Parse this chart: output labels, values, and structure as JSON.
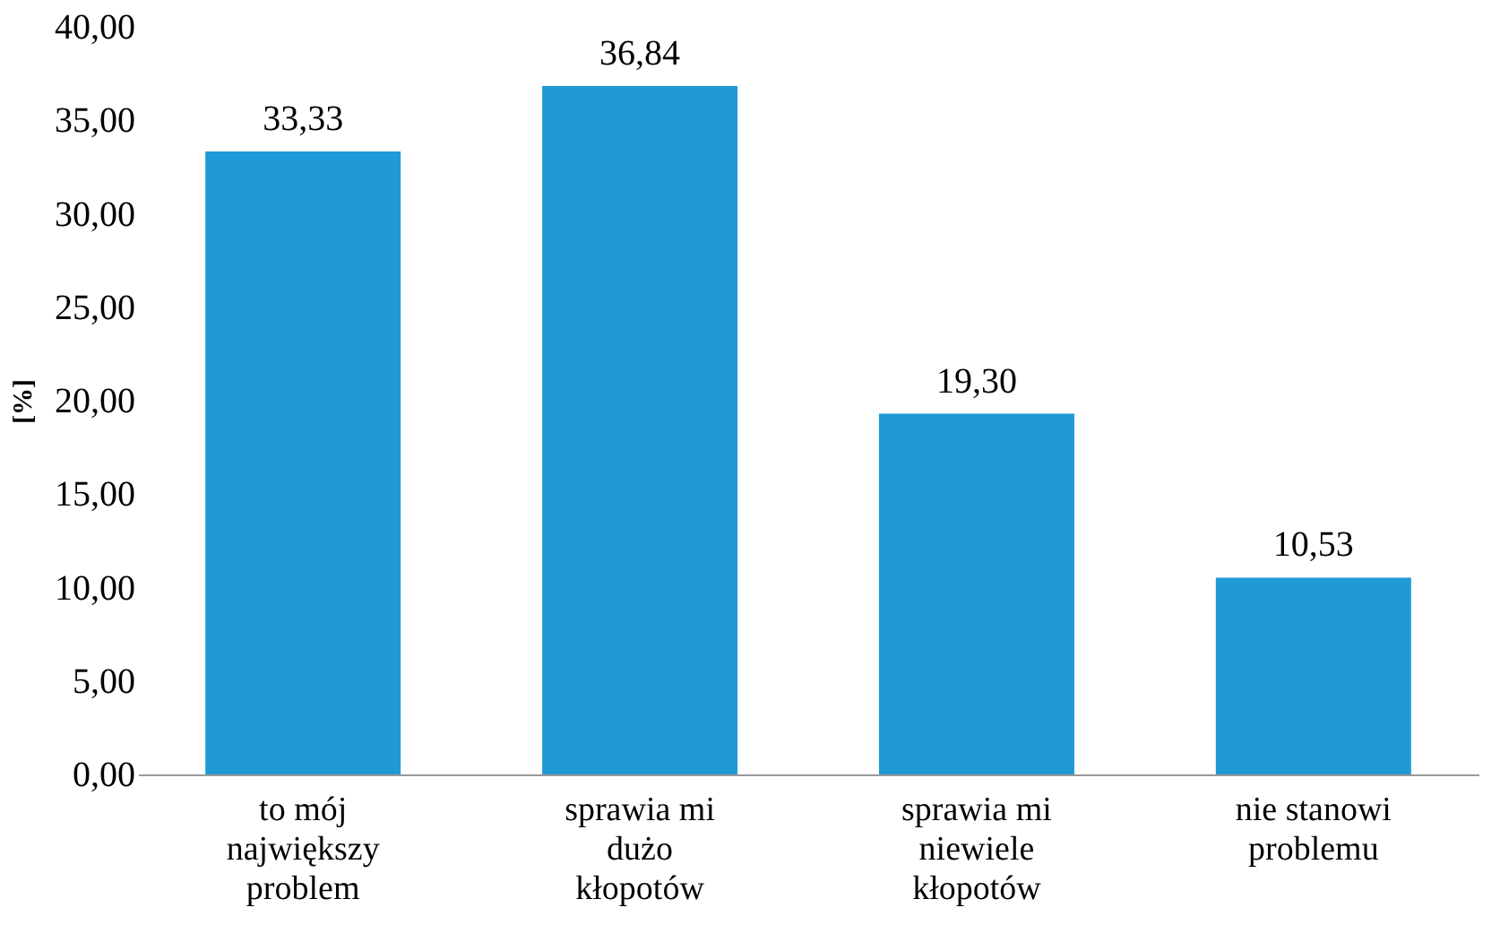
{
  "chart_data": {
    "type": "bar",
    "ylabel": "[%]",
    "categories": [
      "to mój największy problem",
      "sprawia mi dużo kłopotów",
      "sprawia mi niewiele kłopotów",
      "nie stanowi problemu"
    ],
    "values": [
      33.33,
      36.84,
      19.3,
      10.53
    ],
    "value_labels": [
      "33,33",
      "36,84",
      "19,30",
      "10,53"
    ],
    "color": "#1f9ad6",
    "ylim": [
      0,
      40
    ],
    "yticks": [
      {
        "value": 0,
        "label": "0,00"
      },
      {
        "value": 5,
        "label": "5,00"
      },
      {
        "value": 10,
        "label": "10,00"
      },
      {
        "value": 15,
        "label": "15,00"
      },
      {
        "value": 20,
        "label": "20,00"
      },
      {
        "value": 25,
        "label": "25,00"
      },
      {
        "value": 30,
        "label": "30,00"
      },
      {
        "value": 35,
        "label": "35,00"
      },
      {
        "value": 40,
        "label": "40,00"
      }
    ],
    "grid": false
  }
}
